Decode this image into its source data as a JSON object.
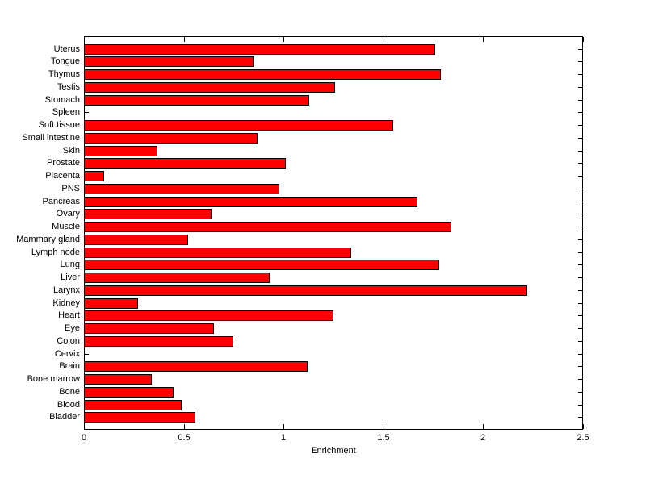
{
  "chart_data": {
    "type": "bar",
    "orientation": "horizontal",
    "title": "",
    "xlabel": "Enrichment",
    "ylabel": "",
    "xlim": [
      0,
      2.5
    ],
    "xticks": [
      0,
      0.5,
      1,
      1.5,
      2,
      2.5
    ],
    "xtick_labels": [
      "0",
      "0.5",
      "1",
      "1.5",
      "2",
      "2.5"
    ],
    "grid": false,
    "legend_position": "none",
    "bar_color": "#FF0000",
    "bar_edge_color": "#000000",
    "axis_color": "#000000",
    "background_color": "#FFFFFF",
    "categories": [
      "Uterus",
      "Tongue",
      "Thymus",
      "Testis",
      "Stomach",
      "Spleen",
      "Soft tissue",
      "Small intestine",
      "Skin",
      "Prostate",
      "Placenta",
      "PNS",
      "Pancreas",
      "Ovary",
      "Muscle",
      "Mammary gland",
      "Lymph node",
      "Lung",
      "Liver",
      "Larynx",
      "Kidney",
      "Heart",
      "Eye",
      "Colon",
      "Cervix",
      "Brain",
      "Bone marrow",
      "Bone",
      "Blood",
      "Bladder"
    ],
    "values": [
      1.76,
      0.85,
      1.79,
      1.26,
      1.13,
      0,
      1.55,
      0.87,
      0.37,
      1.01,
      0.1,
      0.98,
      1.67,
      0.64,
      1.84,
      0.52,
      1.34,
      1.78,
      0.93,
      2.22,
      0.27,
      1.25,
      0.65,
      0.75,
      0,
      1.12,
      0.34,
      0.45,
      0.49,
      0.56
    ]
  }
}
